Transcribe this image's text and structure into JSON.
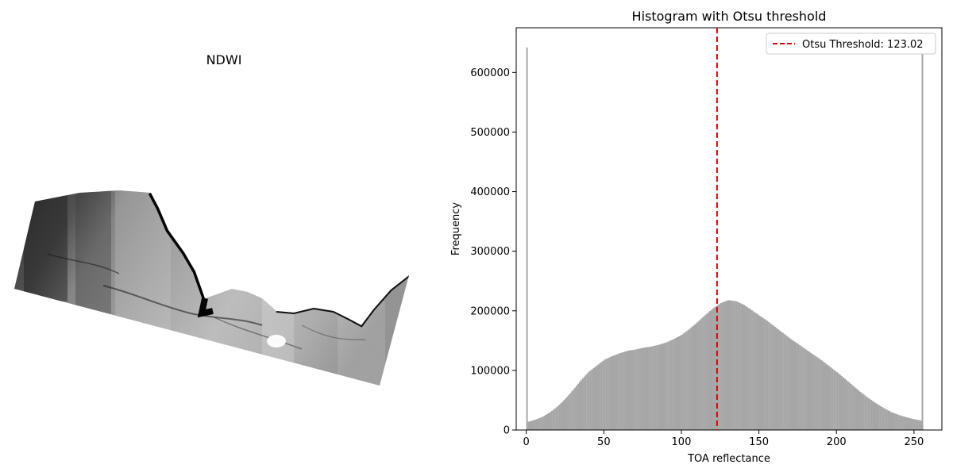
{
  "left_panel": {
    "title": "NDWI",
    "colormap": "grayscale"
  },
  "chart_data": {
    "type": "bar",
    "title": "Histogram with Otsu threshold",
    "xlabel": "TOA reflectance",
    "ylabel": "Frequency",
    "xlim": [
      -6.5,
      268
    ],
    "ylim": [
      0,
      675000
    ],
    "xticks": [
      0,
      50,
      100,
      150,
      200,
      250
    ],
    "yticks": [
      0,
      100000,
      200000,
      300000,
      400000,
      500000,
      600000
    ],
    "grid": false,
    "bar_color": "#a6a6a6",
    "histogram_anchor_points": [
      [
        0,
        642000
      ],
      [
        1,
        14000
      ],
      [
        5,
        17000
      ],
      [
        10,
        22000
      ],
      [
        15,
        30000
      ],
      [
        20,
        40000
      ],
      [
        25,
        53000
      ],
      [
        30,
        68000
      ],
      [
        35,
        84000
      ],
      [
        40,
        98000
      ],
      [
        45,
        108000
      ],
      [
        50,
        118000
      ],
      [
        55,
        124000
      ],
      [
        60,
        129000
      ],
      [
        65,
        133000
      ],
      [
        70,
        135000
      ],
      [
        75,
        138000
      ],
      [
        80,
        140000
      ],
      [
        85,
        143000
      ],
      [
        90,
        147000
      ],
      [
        95,
        153000
      ],
      [
        100,
        160000
      ],
      [
        105,
        170000
      ],
      [
        110,
        181000
      ],
      [
        115,
        193000
      ],
      [
        120,
        204000
      ],
      [
        125,
        213000
      ],
      [
        130,
        218000
      ],
      [
        135,
        216000
      ],
      [
        140,
        210000
      ],
      [
        145,
        201000
      ],
      [
        150,
        192000
      ],
      [
        155,
        183000
      ],
      [
        160,
        173000
      ],
      [
        165,
        163000
      ],
      [
        170,
        153000
      ],
      [
        175,
        144000
      ],
      [
        180,
        135000
      ],
      [
        185,
        126000
      ],
      [
        190,
        117000
      ],
      [
        195,
        107000
      ],
      [
        200,
        97000
      ],
      [
        205,
        86000
      ],
      [
        210,
        75000
      ],
      [
        215,
        64000
      ],
      [
        220,
        54000
      ],
      [
        225,
        45000
      ],
      [
        230,
        37000
      ],
      [
        235,
        30000
      ],
      [
        240,
        25000
      ],
      [
        245,
        21000
      ],
      [
        250,
        18000
      ],
      [
        254,
        16000
      ],
      [
        255,
        642000
      ]
    ],
    "threshold": {
      "value": 123.02,
      "label": "Otsu Threshold: 123.02",
      "color": "#e00000",
      "style": "dashed"
    },
    "legend": {
      "position": "top-right",
      "entries": [
        "Otsu Threshold: 123.02"
      ]
    }
  }
}
